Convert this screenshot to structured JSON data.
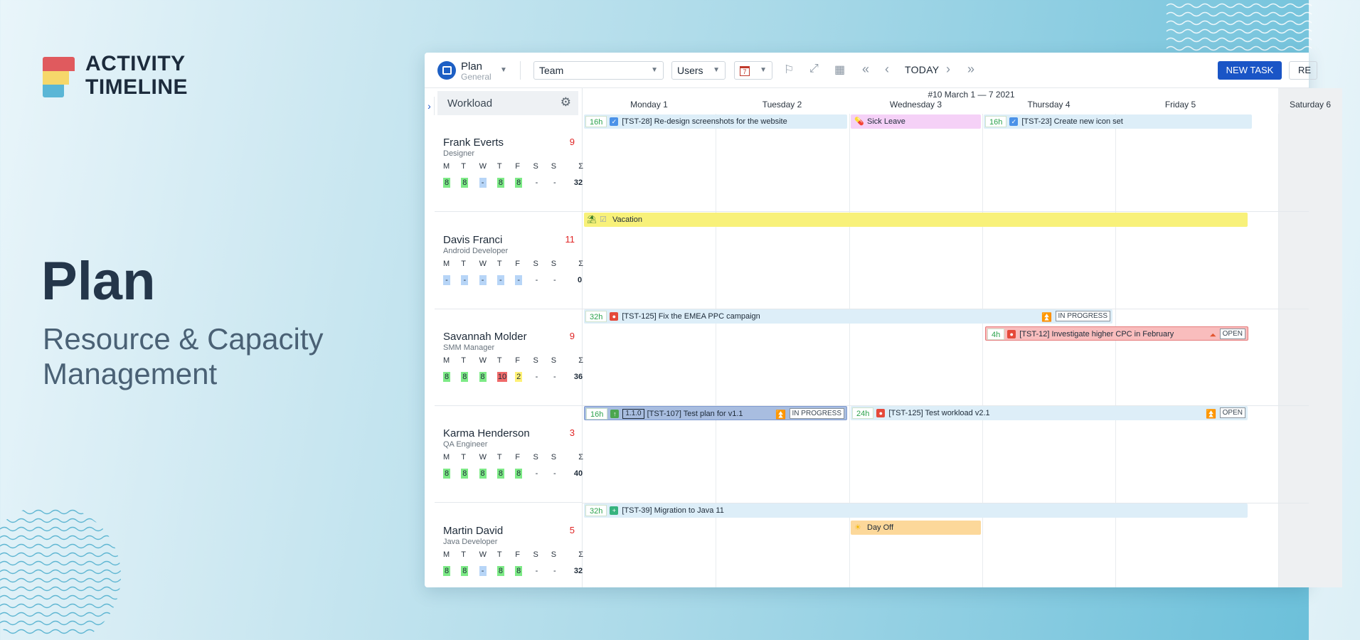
{
  "brand": {
    "line1": "ACTIVITY",
    "line2": "TIMELINE"
  },
  "hero": {
    "title": "Plan",
    "subtitle": "Resource & Capacity Management"
  },
  "toolbar": {
    "view_label": "Plan",
    "view_sub": "General",
    "team_select": "Team",
    "users_select": "Users",
    "calendar_day": "7",
    "today_label": "TODAY",
    "new_task_label": "NEW TASK",
    "re_label": "RE"
  },
  "panel": {
    "title": "Workload",
    "day_letters": [
      "M",
      "T",
      "W",
      "T",
      "F",
      "S",
      "S",
      "Σ"
    ]
  },
  "calendar": {
    "week_label": "#10 March 1 — 7 2021",
    "days": [
      "Monday 1",
      "Tuesday 2",
      "Wednesday 3",
      "Thursday 4",
      "Friday 5",
      "Saturday 6"
    ]
  },
  "people": [
    {
      "name": "Frank Everts",
      "role": "Designer",
      "count": "9",
      "hours": [
        "8",
        "8",
        "-",
        "8",
        "8",
        "-",
        "-"
      ],
      "total": "32"
    },
    {
      "name": "Davis Franci",
      "role": "Android Developer",
      "count": "11",
      "hours": [
        "-",
        "-",
        "-",
        "-",
        "-",
        "-",
        "-"
      ],
      "total": "0"
    },
    {
      "name": "Savannah Molder",
      "role": "SMM Manager",
      "count": "9",
      "hours": [
        "8",
        "8",
        "8",
        "10",
        "2",
        "-",
        "-"
      ],
      "total": "36"
    },
    {
      "name": "Karma Henderson",
      "role": "QA Engineer",
      "count": "3",
      "hours": [
        "8",
        "8",
        "8",
        "8",
        "8",
        "-",
        "-"
      ],
      "total": "40"
    },
    {
      "name": "Martin David",
      "role": "Java Developer",
      "count": "5",
      "hours": [
        "8",
        "8",
        "-",
        "8",
        "8",
        "-",
        "-"
      ],
      "total": "32"
    }
  ],
  "bars": {
    "frank_1": {
      "est": "16h",
      "text": "[TST-28] Re-design screenshots for the website"
    },
    "frank_2": {
      "text": "Sick Leave"
    },
    "frank_3": {
      "est": "16h",
      "text": "[TST-23] Create new icon set"
    },
    "davis_1": {
      "text": "Vacation"
    },
    "sav_1": {
      "est": "32h",
      "text": "[TST-125] Fix the EMEA PPC campaign",
      "status": "IN PROGRESS"
    },
    "sav_2": {
      "est": "4h",
      "text": "[TST-12] Investigate higher CPC in February",
      "status": "OPEN"
    },
    "karma_1": {
      "est": "16h",
      "version": "1.1.0",
      "text": "[TST-107] Test plan for v1.1",
      "status": "IN PROGRESS"
    },
    "karma_2": {
      "est": "24h",
      "text": "[TST-125]  Test workload v2.1",
      "status": "OPEN"
    },
    "martin_1": {
      "est": "32h",
      "text": "[TST-39] Migration to Java 11"
    },
    "martin_2": {
      "text": "Day Off"
    }
  }
}
